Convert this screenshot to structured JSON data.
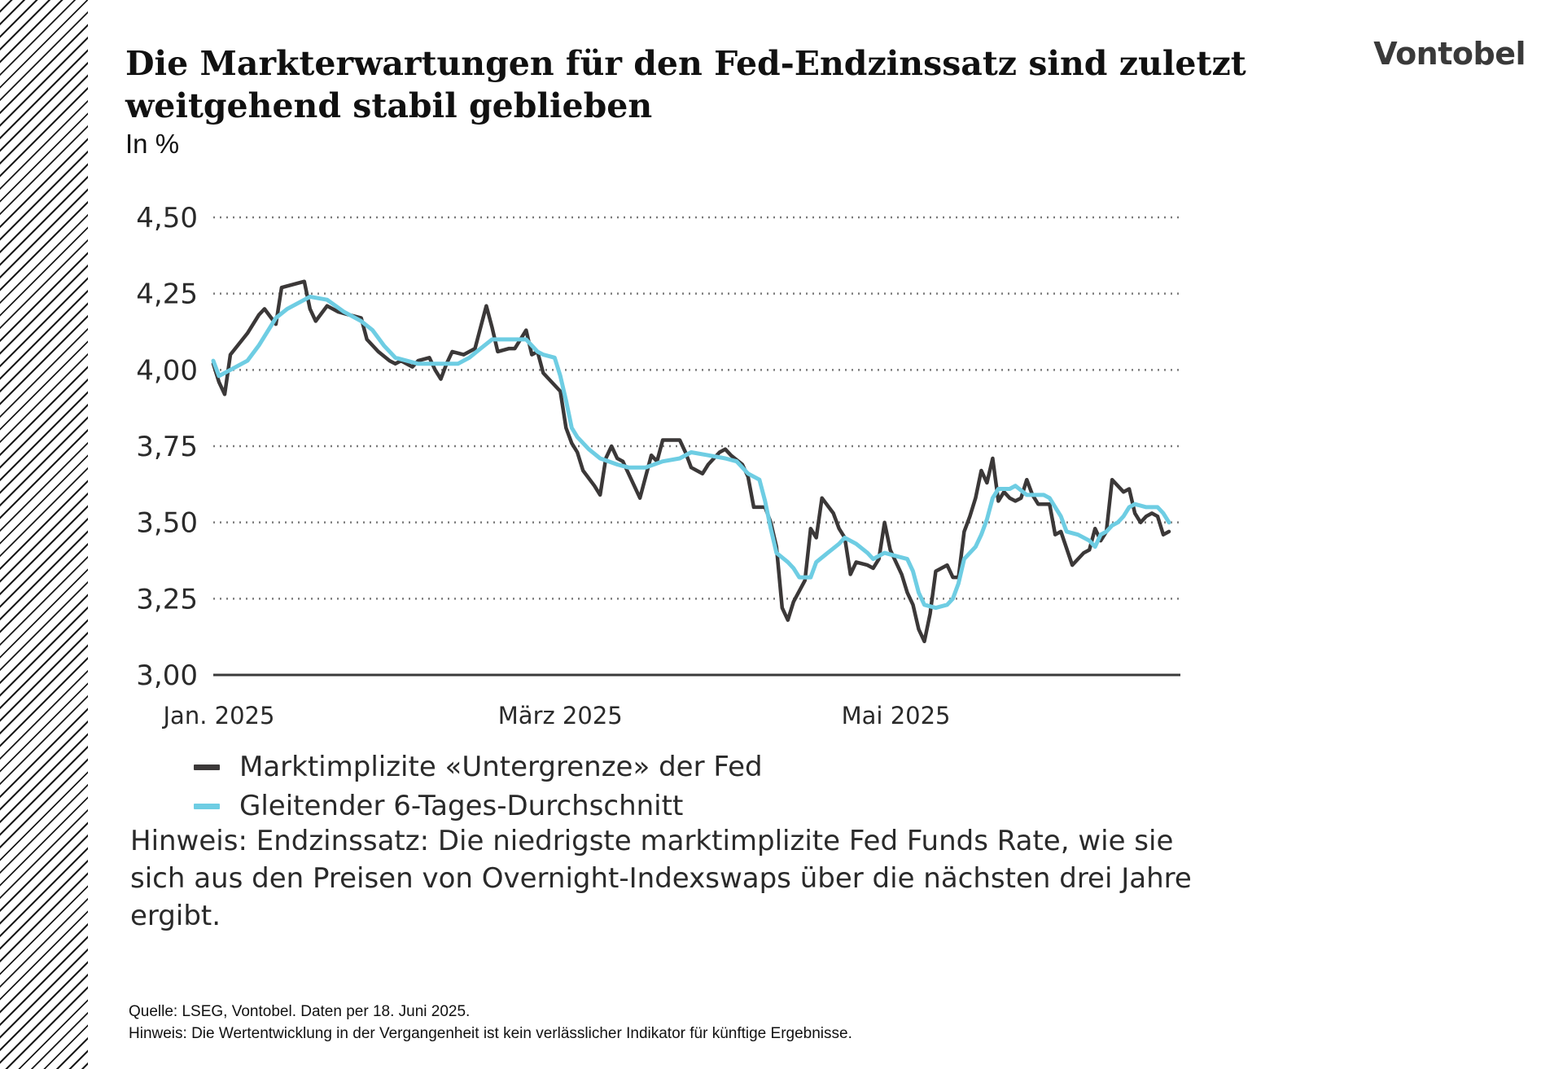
{
  "header": {
    "title": "Die Markterwartungen für den Fed-Endzinssatz sind zuletzt weitgehend stabil geblieben",
    "subtitle": "In %",
    "logo_text": "Vontobel"
  },
  "colors": {
    "series_dark": "#3b3838",
    "series_light": "#6ecde3",
    "grid": "#7a7a7a",
    "axis": "#3a3a3a"
  },
  "chart_data": {
    "type": "line",
    "title": "Die Markterwartungen für den Fed-Endzinssatz sind zuletzt weitgehend stabil geblieben",
    "subtitle": "In %",
    "xlabel": "",
    "ylabel": "",
    "ylim": [
      3.0,
      4.5
    ],
    "yticks": [
      {
        "value": 4.5,
        "label": "4,50"
      },
      {
        "value": 4.25,
        "label": "4,25"
      },
      {
        "value": 4.0,
        "label": "4,00"
      },
      {
        "value": 3.75,
        "label": "3,75"
      },
      {
        "value": 3.5,
        "label": "3,50"
      },
      {
        "value": 3.25,
        "label": "3,25"
      },
      {
        "value": 3.0,
        "label": "3,00"
      }
    ],
    "xlim": [
      "2025-01-01",
      "2025-06-18"
    ],
    "xticks": [
      {
        "date": "2025-01-02",
        "label": "Jan. 2025"
      },
      {
        "date": "2025-03-03",
        "label": "März 2025"
      },
      {
        "date": "2025-05-01",
        "label": "Mai 2025"
      }
    ],
    "grid": "horizontal dotted",
    "legend_position": "bottom-left",
    "series": [
      {
        "name": "Marktimplizite «Untergrenze» der Fed",
        "color": "#3b3838",
        "points": [
          [
            "2025-01-01",
            4.02
          ],
          [
            "2025-01-02",
            3.96
          ],
          [
            "2025-01-03",
            3.92
          ],
          [
            "2025-01-04",
            4.05
          ],
          [
            "2025-01-07",
            4.12
          ],
          [
            "2025-01-09",
            4.18
          ],
          [
            "2025-01-10",
            4.2
          ],
          [
            "2025-01-12",
            4.15
          ],
          [
            "2025-01-13",
            4.27
          ],
          [
            "2025-01-15",
            4.28
          ],
          [
            "2025-01-17",
            4.29
          ],
          [
            "2025-01-18",
            4.2
          ],
          [
            "2025-01-19",
            4.16
          ],
          [
            "2025-01-21",
            4.21
          ],
          [
            "2025-01-23",
            4.19
          ],
          [
            "2025-01-25",
            4.18
          ],
          [
            "2025-01-27",
            4.17
          ],
          [
            "2025-01-28",
            4.1
          ],
          [
            "2025-01-30",
            4.06
          ],
          [
            "2025-02-01",
            4.03
          ],
          [
            "2025-02-02",
            4.02
          ],
          [
            "2025-02-03",
            4.03
          ],
          [
            "2025-02-05",
            4.01
          ],
          [
            "2025-02-06",
            4.03
          ],
          [
            "2025-02-08",
            4.04
          ],
          [
            "2025-02-09",
            4.0
          ],
          [
            "2025-02-10",
            3.97
          ],
          [
            "2025-02-11",
            4.02
          ],
          [
            "2025-02-12",
            4.06
          ],
          [
            "2025-02-14",
            4.05
          ],
          [
            "2025-02-16",
            4.07
          ],
          [
            "2025-02-17",
            4.14
          ],
          [
            "2025-02-18",
            4.21
          ],
          [
            "2025-02-19",
            4.14
          ],
          [
            "2025-02-20",
            4.06
          ],
          [
            "2025-02-22",
            4.07
          ],
          [
            "2025-02-23",
            4.07
          ],
          [
            "2025-02-25",
            4.13
          ],
          [
            "2025-02-26",
            4.05
          ],
          [
            "2025-02-27",
            4.06
          ],
          [
            "2025-02-28",
            3.99
          ],
          [
            "2025-03-01",
            3.97
          ],
          [
            "2025-03-03",
            3.93
          ],
          [
            "2025-03-04",
            3.81
          ],
          [
            "2025-03-05",
            3.76
          ],
          [
            "2025-03-06",
            3.73
          ],
          [
            "2025-03-07",
            3.67
          ],
          [
            "2025-03-09",
            3.62
          ],
          [
            "2025-03-10",
            3.59
          ],
          [
            "2025-03-11",
            3.71
          ],
          [
            "2025-03-12",
            3.75
          ],
          [
            "2025-03-13",
            3.71
          ],
          [
            "2025-03-14",
            3.7
          ],
          [
            "2025-03-15",
            3.66
          ],
          [
            "2025-03-17",
            3.58
          ],
          [
            "2025-03-18",
            3.65
          ],
          [
            "2025-03-19",
            3.72
          ],
          [
            "2025-03-20",
            3.7
          ],
          [
            "2025-03-21",
            3.77
          ],
          [
            "2025-03-24",
            3.77
          ],
          [
            "2025-03-25",
            3.73
          ],
          [
            "2025-03-26",
            3.68
          ],
          [
            "2025-03-27",
            3.67
          ],
          [
            "2025-03-28",
            3.66
          ],
          [
            "2025-03-29",
            3.69
          ],
          [
            "2025-03-31",
            3.73
          ],
          [
            "2025-04-01",
            3.74
          ],
          [
            "2025-04-02",
            3.72
          ],
          [
            "2025-04-04",
            3.69
          ],
          [
            "2025-04-05",
            3.65
          ],
          [
            "2025-04-06",
            3.55
          ],
          [
            "2025-04-08",
            3.55
          ],
          [
            "2025-04-09",
            3.5
          ],
          [
            "2025-04-10",
            3.42
          ],
          [
            "2025-04-11",
            3.22
          ],
          [
            "2025-04-12",
            3.18
          ],
          [
            "2025-04-13",
            3.24
          ],
          [
            "2025-04-15",
            3.31
          ],
          [
            "2025-04-16",
            3.48
          ],
          [
            "2025-04-17",
            3.45
          ],
          [
            "2025-04-18",
            3.58
          ],
          [
            "2025-04-20",
            3.53
          ],
          [
            "2025-04-21",
            3.48
          ],
          [
            "2025-04-22",
            3.45
          ],
          [
            "2025-04-23",
            3.33
          ],
          [
            "2025-04-24",
            3.37
          ],
          [
            "2025-04-26",
            3.36
          ],
          [
            "2025-04-27",
            3.35
          ],
          [
            "2025-04-28",
            3.38
          ],
          [
            "2025-04-29",
            3.5
          ],
          [
            "2025-04-30",
            3.41
          ],
          [
            "2025-05-02",
            3.33
          ],
          [
            "2025-05-03",
            3.27
          ],
          [
            "2025-05-04",
            3.23
          ],
          [
            "2025-05-05",
            3.15
          ],
          [
            "2025-05-06",
            3.11
          ],
          [
            "2025-05-07",
            3.2
          ],
          [
            "2025-05-08",
            3.34
          ],
          [
            "2025-05-09",
            3.35
          ],
          [
            "2025-05-10",
            3.36
          ],
          [
            "2025-05-11",
            3.32
          ],
          [
            "2025-05-12",
            3.32
          ],
          [
            "2025-05-13",
            3.47
          ],
          [
            "2025-05-14",
            3.52
          ],
          [
            "2025-05-15",
            3.58
          ],
          [
            "2025-05-16",
            3.67
          ],
          [
            "2025-05-17",
            3.63
          ],
          [
            "2025-05-18",
            3.71
          ],
          [
            "2025-05-19",
            3.57
          ],
          [
            "2025-05-20",
            3.6
          ],
          [
            "2025-05-21",
            3.58
          ],
          [
            "2025-05-22",
            3.57
          ],
          [
            "2025-05-23",
            3.58
          ],
          [
            "2025-05-24",
            3.64
          ],
          [
            "2025-05-25",
            3.59
          ],
          [
            "2025-05-26",
            3.56
          ],
          [
            "2025-05-27",
            3.56
          ],
          [
            "2025-05-28",
            3.56
          ],
          [
            "2025-05-29",
            3.46
          ],
          [
            "2025-05-30",
            3.47
          ],
          [
            "2025-06-01",
            3.36
          ],
          [
            "2025-06-03",
            3.4
          ],
          [
            "2025-06-04",
            3.41
          ],
          [
            "2025-06-05",
            3.48
          ],
          [
            "2025-06-06",
            3.44
          ],
          [
            "2025-06-07",
            3.47
          ],
          [
            "2025-06-08",
            3.64
          ],
          [
            "2025-06-09",
            3.62
          ],
          [
            "2025-06-10",
            3.6
          ],
          [
            "2025-06-11",
            3.61
          ],
          [
            "2025-06-12",
            3.53
          ],
          [
            "2025-06-13",
            3.5
          ],
          [
            "2025-06-14",
            3.52
          ],
          [
            "2025-06-15",
            3.53
          ],
          [
            "2025-06-16",
            3.52
          ],
          [
            "2025-06-17",
            3.46
          ],
          [
            "2025-06-18",
            3.47
          ]
        ]
      },
      {
        "name": "Gleitender 6-Tages-Durchschnitt",
        "color": "#6ecde3",
        "points": [
          [
            "2025-01-01",
            4.03
          ],
          [
            "2025-01-02",
            3.98
          ],
          [
            "2025-01-04",
            4.0
          ],
          [
            "2025-01-07",
            4.03
          ],
          [
            "2025-01-09",
            4.08
          ],
          [
            "2025-01-12",
            4.17
          ],
          [
            "2025-01-14",
            4.2
          ],
          [
            "2025-01-16",
            4.22
          ],
          [
            "2025-01-18",
            4.24
          ],
          [
            "2025-01-21",
            4.23
          ],
          [
            "2025-01-24",
            4.19
          ],
          [
            "2025-01-27",
            4.16
          ],
          [
            "2025-01-29",
            4.13
          ],
          [
            "2025-01-31",
            4.08
          ],
          [
            "2025-02-02",
            4.04
          ],
          [
            "2025-02-04",
            4.03
          ],
          [
            "2025-02-06",
            4.02
          ],
          [
            "2025-02-08",
            4.02
          ],
          [
            "2025-02-11",
            4.02
          ],
          [
            "2025-02-13",
            4.02
          ],
          [
            "2025-02-15",
            4.04
          ],
          [
            "2025-02-17",
            4.07
          ],
          [
            "2025-02-19",
            4.1
          ],
          [
            "2025-02-22",
            4.1
          ],
          [
            "2025-02-25",
            4.1
          ],
          [
            "2025-02-27",
            4.06
          ],
          [
            "2025-02-28",
            4.05
          ],
          [
            "2025-03-02",
            4.04
          ],
          [
            "2025-03-03",
            3.98
          ],
          [
            "2025-03-04",
            3.9
          ],
          [
            "2025-03-05",
            3.81
          ],
          [
            "2025-03-06",
            3.78
          ],
          [
            "2025-03-08",
            3.74
          ],
          [
            "2025-03-10",
            3.71
          ],
          [
            "2025-03-13",
            3.69
          ],
          [
            "2025-03-15",
            3.68
          ],
          [
            "2025-03-18",
            3.68
          ],
          [
            "2025-03-21",
            3.7
          ],
          [
            "2025-03-24",
            3.71
          ],
          [
            "2025-03-26",
            3.73
          ],
          [
            "2025-03-29",
            3.72
          ],
          [
            "2025-04-01",
            3.71
          ],
          [
            "2025-04-03",
            3.7
          ],
          [
            "2025-04-05",
            3.66
          ],
          [
            "2025-04-07",
            3.64
          ],
          [
            "2025-04-08",
            3.57
          ],
          [
            "2025-04-09",
            3.48
          ],
          [
            "2025-04-10",
            3.4
          ],
          [
            "2025-04-12",
            3.37
          ],
          [
            "2025-04-13",
            3.35
          ],
          [
            "2025-04-14",
            3.32
          ],
          [
            "2025-04-16",
            3.32
          ],
          [
            "2025-04-17",
            3.37
          ],
          [
            "2025-04-19",
            3.4
          ],
          [
            "2025-04-21",
            3.43
          ],
          [
            "2025-04-22",
            3.45
          ],
          [
            "2025-04-24",
            3.43
          ],
          [
            "2025-04-26",
            3.4
          ],
          [
            "2025-04-27",
            3.38
          ],
          [
            "2025-04-29",
            3.4
          ],
          [
            "2025-05-01",
            3.39
          ],
          [
            "2025-05-03",
            3.38
          ],
          [
            "2025-05-04",
            3.34
          ],
          [
            "2025-05-05",
            3.27
          ],
          [
            "2025-05-06",
            3.23
          ],
          [
            "2025-05-08",
            3.22
          ],
          [
            "2025-05-10",
            3.23
          ],
          [
            "2025-05-11",
            3.25
          ],
          [
            "2025-05-12",
            3.3
          ],
          [
            "2025-05-13",
            3.38
          ],
          [
            "2025-05-15",
            3.42
          ],
          [
            "2025-05-16",
            3.46
          ],
          [
            "2025-05-17",
            3.51
          ],
          [
            "2025-05-18",
            3.58
          ],
          [
            "2025-05-19",
            3.61
          ],
          [
            "2025-05-21",
            3.61
          ],
          [
            "2025-05-22",
            3.62
          ],
          [
            "2025-05-24",
            3.59
          ],
          [
            "2025-05-25",
            3.59
          ],
          [
            "2025-05-27",
            3.59
          ],
          [
            "2025-05-28",
            3.58
          ],
          [
            "2025-05-29",
            3.55
          ],
          [
            "2025-05-30",
            3.52
          ],
          [
            "2025-05-31",
            3.47
          ],
          [
            "2025-06-02",
            3.46
          ],
          [
            "2025-06-04",
            3.44
          ],
          [
            "2025-06-05",
            3.42
          ],
          [
            "2025-06-06",
            3.46
          ],
          [
            "2025-06-07",
            3.47
          ],
          [
            "2025-06-08",
            3.49
          ],
          [
            "2025-06-09",
            3.5
          ],
          [
            "2025-06-10",
            3.52
          ],
          [
            "2025-06-11",
            3.55
          ],
          [
            "2025-06-12",
            3.56
          ],
          [
            "2025-06-14",
            3.55
          ],
          [
            "2025-06-16",
            3.55
          ],
          [
            "2025-06-17",
            3.53
          ],
          [
            "2025-06-18",
            3.5
          ]
        ]
      }
    ]
  },
  "note": {
    "text": "Hinweis: Endzinssatz: Die niedrigste marktimplizite Fed Funds Rate, wie sie sich aus den Preisen von Overnight-Indexswaps über die nächsten drei Jahre ergibt."
  },
  "footer": {
    "source": "Quelle: LSEG, Vontobel. Daten per  18. Juni 2025.",
    "disclaimer": "Hinweis: Die Wertentwicklung in der Vergangenheit ist kein verlässlicher Indikator für künftige Ergebnisse."
  }
}
